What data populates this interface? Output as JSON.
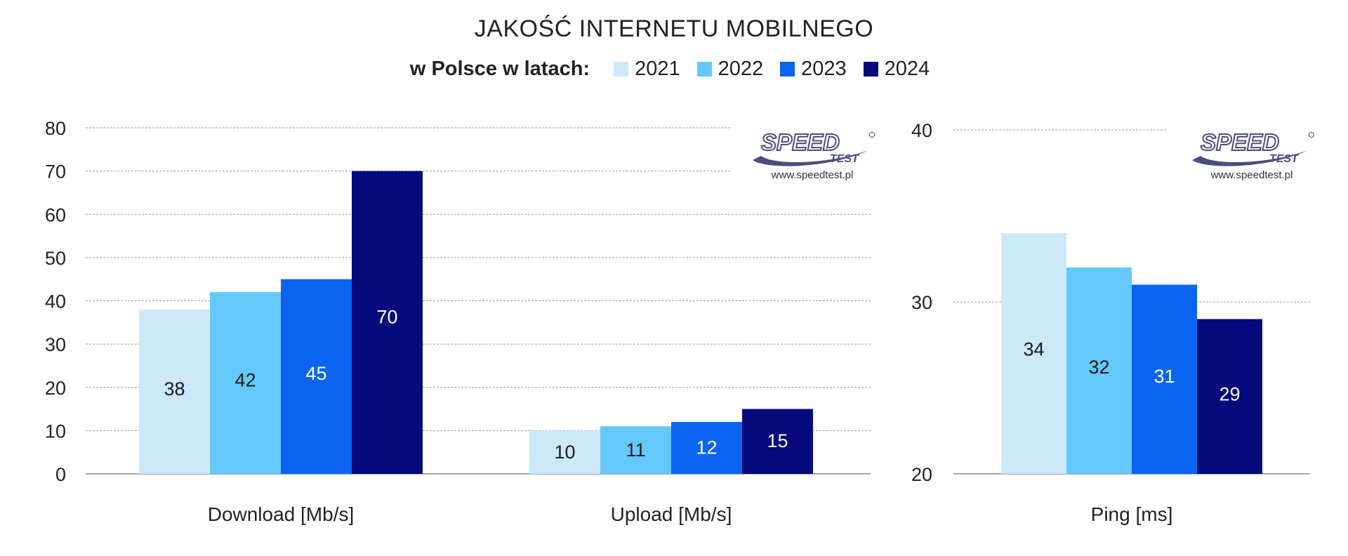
{
  "title": "JAKOŚĆ INTERNETU MOBILNEGO",
  "legend_prefix": "w Polsce w latach:",
  "logo": {
    "text_main": "SPEED",
    "text_sub": "TEST",
    "url": "www.speedtest.pl",
    "color": "#4a4e7c"
  },
  "chart_data": [
    {
      "type": "bar",
      "categories": [
        "Download [Mb/s]",
        "Upload [Mb/s]"
      ],
      "series": [
        {
          "name": "2021",
          "color": "#cce9fa",
          "values": [
            38,
            10
          ],
          "label_color": "#1a1a1a"
        },
        {
          "name": "2022",
          "color": "#64c8fa",
          "values": [
            42,
            11
          ],
          "label_color": "#1a1a1a"
        },
        {
          "name": "2023",
          "color": "#0a64f0",
          "values": [
            45,
            12
          ],
          "label_color": "#ffffff"
        },
        {
          "name": "2024",
          "color": "#050a7d",
          "values": [
            70,
            15
          ],
          "label_color": "#ffffff"
        }
      ],
      "ylim": [
        0,
        80
      ],
      "yticks": [
        0,
        10,
        20,
        30,
        40,
        50,
        60,
        70,
        80
      ],
      "grid": true
    },
    {
      "type": "bar",
      "categories": [
        "Ping [ms]"
      ],
      "series": [
        {
          "name": "2021",
          "color": "#cce9fa",
          "values": [
            34
          ],
          "label_color": "#1a1a1a"
        },
        {
          "name": "2022",
          "color": "#64c8fa",
          "values": [
            32
          ],
          "label_color": "#1a1a1a"
        },
        {
          "name": "2023",
          "color": "#0a64f0",
          "values": [
            31
          ],
          "label_color": "#ffffff"
        },
        {
          "name": "2024",
          "color": "#050a7d",
          "values": [
            29
          ],
          "label_color": "#ffffff"
        }
      ],
      "ylim": [
        20,
        40
      ],
      "yticks": [
        20,
        30,
        40
      ],
      "grid": true
    }
  ]
}
